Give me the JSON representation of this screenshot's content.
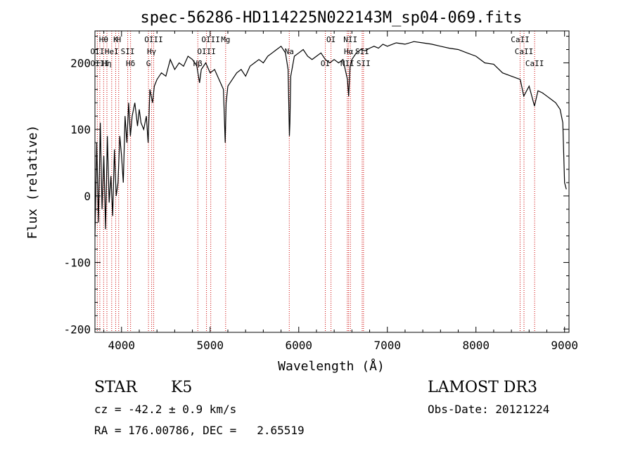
{
  "chart_data": {
    "type": "line",
    "title": "spec-56286-HD114225N022143M_sp04-069.fits",
    "xlabel": "Wavelength (Å)",
    "ylabel": "Flux (relative)",
    "xlim": [
      3700,
      9050
    ],
    "ylim": [
      -205,
      248
    ],
    "xticks": [
      4000,
      5000,
      6000,
      7000,
      8000,
      9000
    ],
    "xtick_labels": [
      "4000",
      "5000",
      "6000",
      "7000",
      "8000",
      "9000"
    ],
    "yticks": [
      -200,
      -100,
      0,
      100,
      200
    ],
    "ytick_labels": [
      "-200",
      "-100",
      "0",
      "100",
      "200"
    ],
    "line_color": "#000000",
    "marker_color": "#cc0000",
    "series": [
      {
        "name": "flux",
        "points": [
          [
            3700,
            -60
          ],
          [
            3720,
            80
          ],
          [
            3740,
            -40
          ],
          [
            3760,
            110
          ],
          [
            3780,
            -20
          ],
          [
            3800,
            60
          ],
          [
            3820,
            -50
          ],
          [
            3840,
            90
          ],
          [
            3860,
            -10
          ],
          [
            3880,
            30
          ],
          [
            3900,
            -30
          ],
          [
            3920,
            70
          ],
          [
            3940,
            0
          ],
          [
            3960,
            20
          ],
          [
            3980,
            90
          ],
          [
            4000,
            60
          ],
          [
            4020,
            20
          ],
          [
            4040,
            120
          ],
          [
            4060,
            80
          ],
          [
            4080,
            140
          ],
          [
            4100,
            90
          ],
          [
            4120,
            120
          ],
          [
            4150,
            140
          ],
          [
            4180,
            105
          ],
          [
            4200,
            130
          ],
          [
            4220,
            110
          ],
          [
            4250,
            100
          ],
          [
            4280,
            120
          ],
          [
            4300,
            80
          ],
          [
            4320,
            160
          ],
          [
            4350,
            140
          ],
          [
            4370,
            165
          ],
          [
            4400,
            175
          ],
          [
            4450,
            185
          ],
          [
            4500,
            180
          ],
          [
            4550,
            205
          ],
          [
            4600,
            190
          ],
          [
            4650,
            200
          ],
          [
            4700,
            195
          ],
          [
            4750,
            210
          ],
          [
            4800,
            205
          ],
          [
            4850,
            195
          ],
          [
            4880,
            170
          ],
          [
            4900,
            190
          ],
          [
            4950,
            200
          ],
          [
            5000,
            185
          ],
          [
            5050,
            190
          ],
          [
            5100,
            175
          ],
          [
            5150,
            160
          ],
          [
            5170,
            80
          ],
          [
            5180,
            140
          ],
          [
            5200,
            165
          ],
          [
            5250,
            175
          ],
          [
            5300,
            185
          ],
          [
            5350,
            190
          ],
          [
            5400,
            180
          ],
          [
            5450,
            195
          ],
          [
            5500,
            200
          ],
          [
            5550,
            205
          ],
          [
            5600,
            200
          ],
          [
            5650,
            210
          ],
          [
            5700,
            215
          ],
          [
            5750,
            220
          ],
          [
            5800,
            225
          ],
          [
            5850,
            215
          ],
          [
            5880,
            190
          ],
          [
            5895,
            90
          ],
          [
            5900,
            110
          ],
          [
            5910,
            180
          ],
          [
            5950,
            210
          ],
          [
            6000,
            215
          ],
          [
            6050,
            220
          ],
          [
            6100,
            210
          ],
          [
            6150,
            205
          ],
          [
            6200,
            210
          ],
          [
            6250,
            215
          ],
          [
            6300,
            205
          ],
          [
            6350,
            200
          ],
          [
            6400,
            205
          ],
          [
            6450,
            200
          ],
          [
            6500,
            205
          ],
          [
            6550,
            175
          ],
          [
            6563,
            150
          ],
          [
            6580,
            195
          ],
          [
            6600,
            205
          ],
          [
            6650,
            215
          ],
          [
            6700,
            220
          ],
          [
            6750,
            218
          ],
          [
            6800,
            222
          ],
          [
            6850,
            225
          ],
          [
            6900,
            222
          ],
          [
            6950,
            228
          ],
          [
            7000,
            225
          ],
          [
            7100,
            230
          ],
          [
            7200,
            228
          ],
          [
            7300,
            232
          ],
          [
            7400,
            230
          ],
          [
            7500,
            228
          ],
          [
            7600,
            225
          ],
          [
            7700,
            222
          ],
          [
            7800,
            220
          ],
          [
            7900,
            215
          ],
          [
            8000,
            210
          ],
          [
            8100,
            200
          ],
          [
            8200,
            198
          ],
          [
            8300,
            185
          ],
          [
            8400,
            180
          ],
          [
            8500,
            175
          ],
          [
            8540,
            150
          ],
          [
            8600,
            165
          ],
          [
            8660,
            135
          ],
          [
            8700,
            158
          ],
          [
            8750,
            155
          ],
          [
            8800,
            150
          ],
          [
            8850,
            145
          ],
          [
            8900,
            140
          ],
          [
            8950,
            130
          ],
          [
            8980,
            110
          ],
          [
            9000,
            20
          ],
          [
            9020,
            10
          ]
        ]
      }
    ],
    "lines": [
      {
        "label": "Hθ",
        "x": 3798
      },
      {
        "label": "OII",
        "x": 3727
      },
      {
        "label": "OIII",
        "x": 3755
      },
      {
        "label": "K",
        "x": 3934
      },
      {
        "label": "HeI",
        "x": 3889
      },
      {
        "label": "Hη",
        "x": 3835
      },
      {
        "label": "H",
        "x": 3968
      },
      {
        "label": "SII",
        "x": 4070
      },
      {
        "label": "Hδ",
        "x": 4102
      },
      {
        "label": "OIII",
        "x": 4363
      },
      {
        "label": "Hγ",
        "x": 4340
      },
      {
        "label": "G",
        "x": 4304
      },
      {
        "label": "OIII",
        "x": 5007
      },
      {
        "label": "OIII",
        "x": 4959
      },
      {
        "label": "Hβ",
        "x": 4861
      },
      {
        "label": "Mg",
        "x": 5175
      },
      {
        "label": "Na",
        "x": 5893
      },
      {
        "label": "OI",
        "x": 6300
      },
      {
        "label": "OI",
        "x": 6364
      },
      {
        "label": "Hα",
        "x": 6563
      },
      {
        "label": "NII",
        "x": 6548
      },
      {
        "label": "NII",
        "x": 6583
      },
      {
        "label": "SII",
        "x": 6716
      },
      {
        "label": "SII",
        "x": 6731
      },
      {
        "label": "CaII",
        "x": 8498
      },
      {
        "label": "CaII",
        "x": 8542
      },
      {
        "label": "CaII",
        "x": 8662
      }
    ]
  },
  "info": {
    "object_class": "STAR",
    "subclass": "K5",
    "survey": "LAMOST DR3",
    "cz": "cz = -42.2 ± 0.9 km/s",
    "obs_date": "Obs-Date: 20121224",
    "coords": "RA = 176.00786, DEC =   2.65519"
  }
}
